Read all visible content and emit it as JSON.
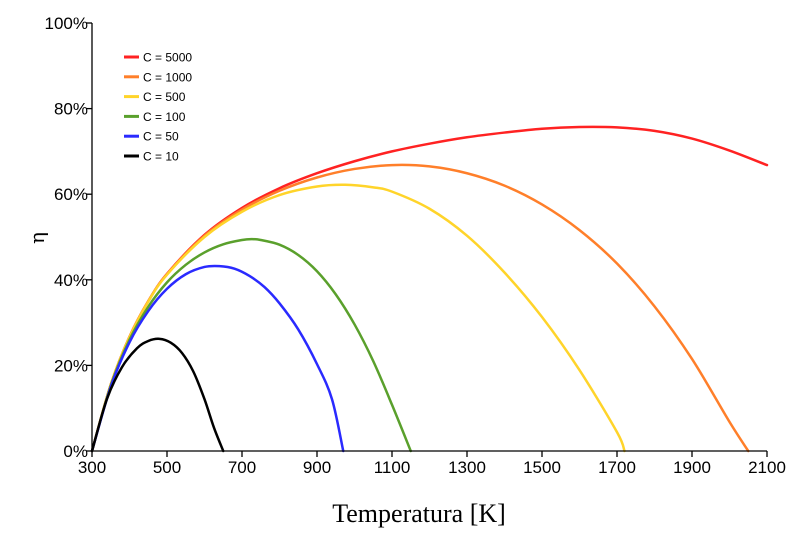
{
  "chart_data": {
    "type": "line",
    "title": "",
    "xlabel": "Temperatura [K]",
    "ylabel": "η",
    "xlim": [
      300,
      2100
    ],
    "ylim": [
      0,
      100
    ],
    "xticks": [
      300,
      500,
      700,
      900,
      1100,
      1300,
      1500,
      1700,
      1900,
      2100
    ],
    "yticks": [
      0,
      20,
      40,
      60,
      80,
      100
    ],
    "ytick_suffix": "%",
    "grid": false,
    "legend_position": "top-left",
    "series": [
      {
        "name": "C = 5000",
        "color": "#ff2222",
        "x": [
          300,
          350,
          400,
          450,
          500,
          600,
          700,
          800,
          900,
          1000,
          1100,
          1200,
          1300,
          1400,
          1500,
          1600,
          1700,
          1800,
          1900,
          2000,
          2100
        ],
        "y": [
          0,
          15.5,
          26.7,
          35.0,
          41.4,
          50.5,
          56.8,
          61.4,
          64.9,
          67.7,
          70.0,
          71.8,
          73.3,
          74.4,
          75.3,
          75.7,
          75.6,
          74.8,
          73.0,
          70.2,
          66.8
        ]
      },
      {
        "name": "C = 1000",
        "color": "#ff7f2a",
        "x": [
          300,
          350,
          400,
          450,
          500,
          600,
          700,
          800,
          900,
          1000,
          1100,
          1200,
          1300,
          1400,
          1500,
          1600,
          1700,
          1800,
          1900,
          2000,
          2050
        ],
        "y": [
          0,
          15.5,
          26.7,
          35.0,
          41.3,
          50.3,
          56.4,
          60.8,
          63.9,
          65.9,
          66.8,
          66.5,
          64.9,
          62.0,
          57.6,
          51.6,
          43.8,
          33.8,
          21.5,
          6.8,
          0
        ]
      },
      {
        "name": "C = 500",
        "color": "#ffd42a",
        "x": [
          300,
          350,
          400,
          450,
          500,
          600,
          700,
          800,
          900,
          975,
          1050,
          1100,
          1200,
          1300,
          1400,
          1500,
          1600,
          1700,
          1720
        ],
        "y": [
          0,
          15.5,
          26.6,
          34.9,
          41.2,
          50.0,
          55.9,
          59.8,
          61.8,
          62.2,
          61.6,
          60.6,
          56.6,
          50.3,
          41.7,
          31.3,
          18.9,
          4.4,
          0
        ]
      },
      {
        "name": "C = 100",
        "color": "#5aa02c",
        "x": [
          300,
          350,
          400,
          450,
          500,
          550,
          600,
          650,
          700,
          725,
          750,
          800,
          850,
          900,
          950,
          1000,
          1050,
          1100,
          1150
        ],
        "y": [
          0,
          15.3,
          26.0,
          33.7,
          39.4,
          43.5,
          46.4,
          48.3,
          49.3,
          49.5,
          49.3,
          48.2,
          45.8,
          42.0,
          36.6,
          29.6,
          21.0,
          10.8,
          0
        ]
      },
      {
        "name": "C = 50",
        "color": "#2a2aff",
        "x": [
          300,
          350,
          400,
          450,
          500,
          550,
          600,
          640,
          680,
          720,
          760,
          800,
          850,
          900,
          940,
          970
        ],
        "y": [
          0,
          15.0,
          25.4,
          32.7,
          37.9,
          41.3,
          43.0,
          43.2,
          42.6,
          40.9,
          38.3,
          34.5,
          28.4,
          20.3,
          12.1,
          0
        ]
      },
      {
        "name": "C = 10",
        "color": "#000000",
        "x": [
          300,
          340,
          380,
          420,
          450,
          480,
          510,
          540,
          570,
          600,
          625,
          650
        ],
        "y": [
          0,
          12.2,
          19.6,
          24.0,
          25.7,
          26.2,
          25.3,
          22.9,
          18.6,
          12.1,
          5.5,
          0
        ]
      }
    ]
  }
}
